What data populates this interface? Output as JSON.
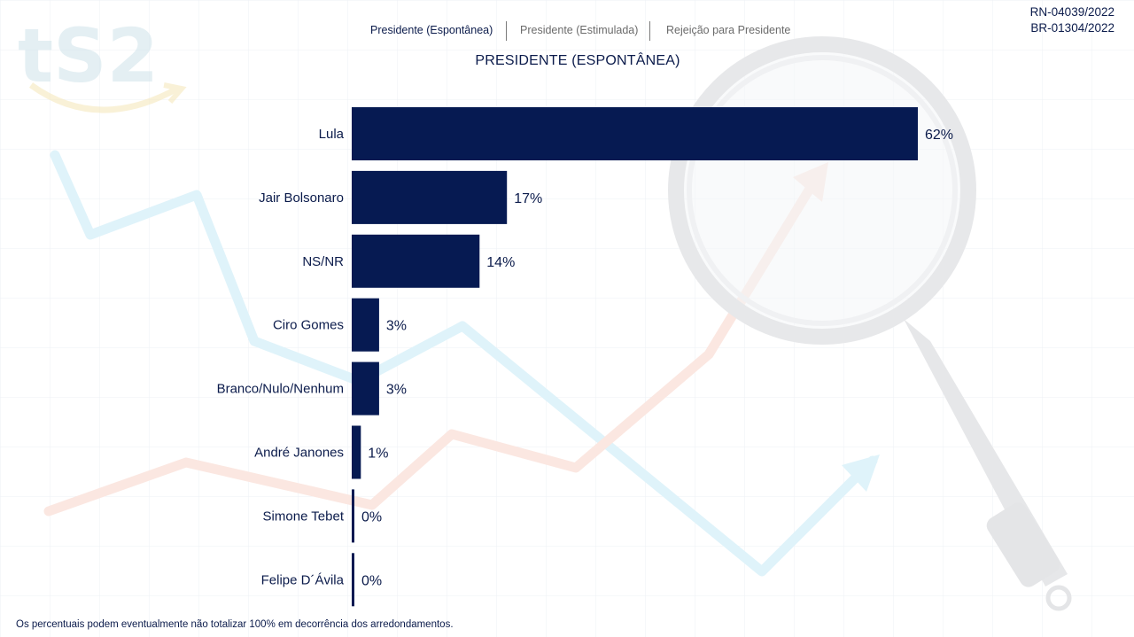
{
  "codes": {
    "line1": "RN-04039/2022",
    "line2": "BR-01304/2022"
  },
  "tabs": [
    {
      "label": "Presidente (Espontânea)",
      "active": true
    },
    {
      "label": "Presidente (Estimulada)",
      "active": false
    },
    {
      "label": "Rejeição para Presidente",
      "active": false
    }
  ],
  "footnote": "Os percentuais podem eventualmente não totalizar 100% em decorrência dos arredondamentos.",
  "colors": {
    "bar": "#061a52",
    "text": "#0b1b4b"
  },
  "chart_data": {
    "type": "bar",
    "orientation": "horizontal",
    "title": "PRESIDENTE (ESPONTÂNEA)",
    "categories": [
      "Lula",
      "Jair Bolsonaro",
      "NS/NR",
      "Ciro Gomes",
      "Branco/Nulo/Nenhum",
      "André Janones",
      "Simone Tebet",
      "Felipe D´Ávila"
    ],
    "values": [
      62,
      17,
      14,
      3,
      3,
      1,
      0,
      0
    ],
    "value_labels": [
      "62%",
      "17%",
      "14%",
      "3%",
      "3%",
      "1%",
      "0%",
      "0%"
    ],
    "xlim": [
      0,
      62
    ],
    "grid": false,
    "legend": "none"
  }
}
